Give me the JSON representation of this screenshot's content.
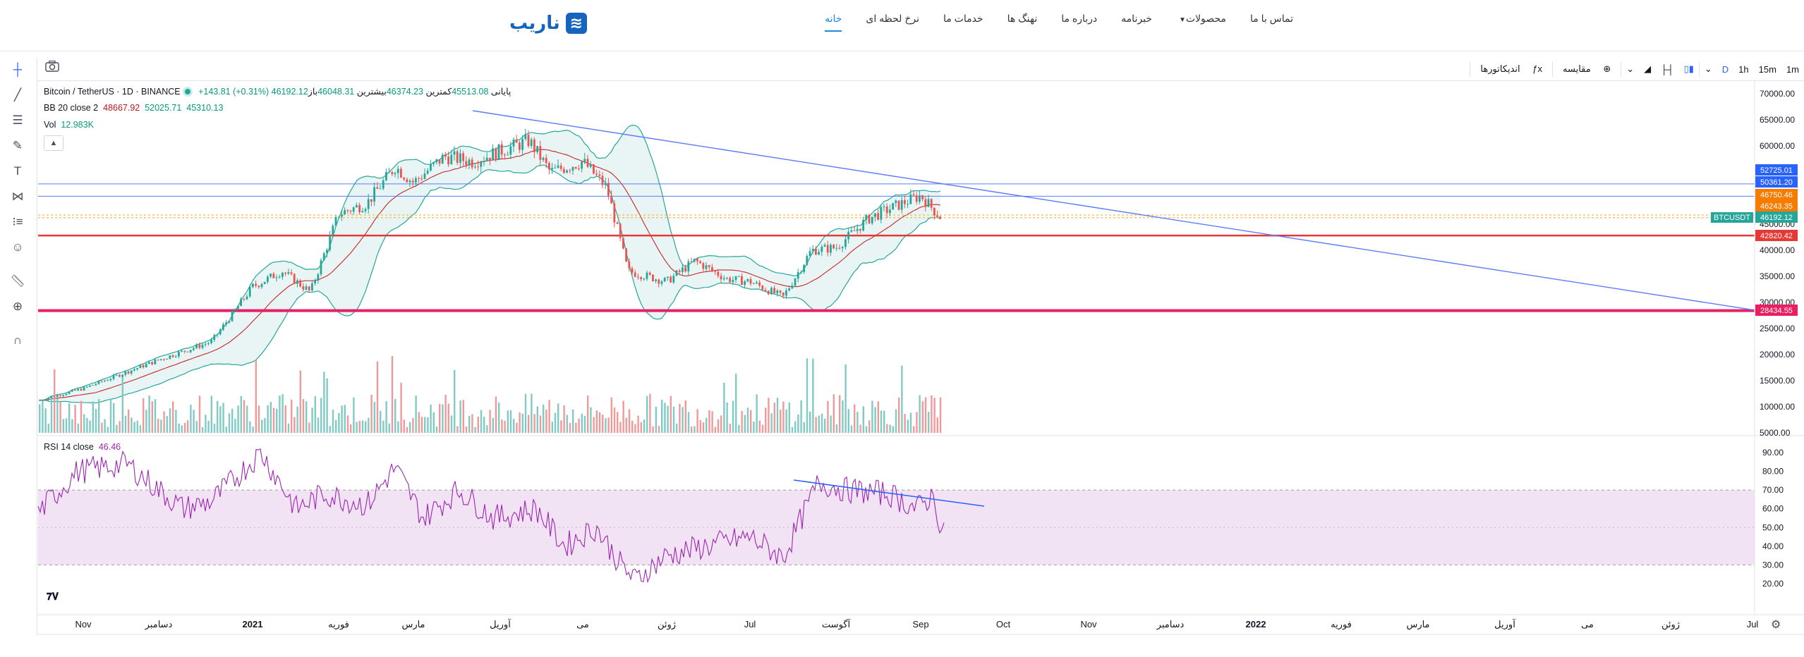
{
  "site": {
    "logo_text": "ناریب",
    "logo_mark": "≋",
    "brand_color": "#1565c0",
    "nav": [
      {
        "label": "خانه",
        "active": true
      },
      {
        "label": "نرخ لحظه ای"
      },
      {
        "label": "خدمات ما"
      },
      {
        "label": "نهنگ ها"
      },
      {
        "label": "درباره ما"
      },
      {
        "label": "خبرنامه"
      },
      {
        "label": "محصولات",
        "dropdown": true
      },
      {
        "label": "تماس با ما"
      }
    ]
  },
  "chart_toolbar": {
    "intervals": [
      "1m",
      "15m",
      "1h",
      "D"
    ],
    "selected_interval": "D",
    "compare_label": "مقایسه",
    "indicators_label": "اندیکاتورها"
  },
  "left_tools": [
    "crosshair-icon",
    "trendline-icon",
    "fib-icon",
    "brush-icon",
    "text-icon",
    "pattern-icon",
    "forecast-icon",
    "emoji-icon",
    "ruler-icon",
    "zoom-icon",
    "magnet-icon"
  ],
  "legend": {
    "symbol": "Bitcoin / TetherUS · 1D · BINANCE",
    "open_label": "باز",
    "open": "46048.31",
    "high_label": "بیشترین",
    "high": "46374.23",
    "low_label": "کمترین",
    "low": "45513.08",
    "close_label": "پایانی",
    "close": "46192.12",
    "change": "+143.81 (+0.31%)",
    "bb_label": "BB 20 close 2",
    "bb_basis": "48667.92",
    "bb_upper": "52025.71",
    "bb_lower": "45310.13",
    "vol_label": "Vol",
    "vol": "12.983K",
    "rsi_label": "RSI 14 close",
    "rsi": "46.46"
  },
  "price_axis": [
    "70000.00",
    "65000.00",
    "60000.00",
    "55000.00",
    "50000.00",
    "45000.00",
    "40000.00",
    "35000.00",
    "30000.00",
    "25000.00",
    "20000.00",
    "15000.00",
    "10000.00",
    "5000.00"
  ],
  "price_labels": [
    {
      "text": "52725.01",
      "color": "#2962ff"
    },
    {
      "text": "50361.20",
      "color": "#2962ff"
    },
    {
      "text": "46750.46",
      "color": "#f57c00"
    },
    {
      "text": "46243.35",
      "color": "#f57c00"
    },
    {
      "text": "46192.12",
      "color": "#26a69a"
    },
    {
      "text": "42820.42",
      "color": "#e53935"
    },
    {
      "text": "28434.55",
      "color": "#e91e63"
    }
  ],
  "symbol_tag": "BTCUSDT",
  "rsi_axis": [
    "90.00",
    "80.00",
    "70.00",
    "60.00",
    "50.00",
    "40.00",
    "30.00",
    "20.00"
  ],
  "time_axis": [
    "Nov",
    "دسامبر",
    "2021",
    "فوریه",
    "مارس",
    "آوریل",
    "می",
    "ژوئن",
    "Jul",
    "آگوست",
    "Sep",
    "Oct",
    "Nov",
    "دسامبر",
    "2022",
    "فوریه",
    "مارس",
    "آوریل",
    "می",
    "ژوئن",
    "Jul"
  ],
  "chart_data": {
    "type": "candlestick",
    "symbol": "BTCUSDT",
    "interval": "1D",
    "y_range": [
      5000,
      72000
    ],
    "key_points": [
      {
        "x": "Nov",
        "close": 13500
      },
      {
        "x": "دسامبر",
        "close": 19000
      },
      {
        "x": "2021",
        "close": 33000
      },
      {
        "x": "فوریه",
        "close": 47000
      },
      {
        "x": "مارس",
        "close": 55000
      },
      {
        "x": "آوریل",
        "close": 59000
      },
      {
        "x": "می",
        "close": 57000
      },
      {
        "x": "ژوئن",
        "close": 36000
      },
      {
        "x": "Jul",
        "close": 34000
      },
      {
        "x": "آگوست",
        "close": 40000
      },
      {
        "x": "Sep",
        "close": 46192
      }
    ],
    "horizontal_levels": [
      52725.01,
      50361.2,
      46750.46,
      46243.35,
      42820.42,
      28434.55
    ],
    "rsi_range": [
      20,
      95
    ],
    "rsi_band": [
      30,
      70
    ]
  }
}
